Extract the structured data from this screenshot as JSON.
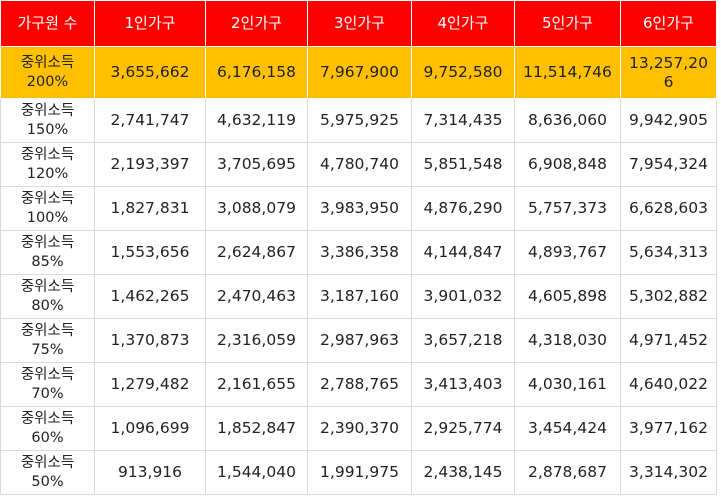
{
  "table": {
    "headers": [
      "가구원 수",
      "1인가구",
      "2인가구",
      "3인가구",
      "4인가구",
      "5인가구",
      "6인가구"
    ],
    "rows": [
      {
        "label": [
          "중위소득",
          "200%"
        ],
        "values": [
          "3,655,662",
          "6,176,158",
          "7,967,900",
          "9,752,580",
          "11,514,746",
          "13,257,206"
        ],
        "highlight": true
      },
      {
        "label": [
          "중위소득",
          "150%"
        ],
        "values": [
          "2,741,747",
          "4,632,119",
          "5,975,925",
          "7,314,435",
          "8,636,060",
          "9,942,905"
        ]
      },
      {
        "label": [
          "중위소득",
          "120%"
        ],
        "values": [
          "2,193,397",
          "3,705,695",
          "4,780,740",
          "5,851,548",
          "6,908,848",
          "7,954,324"
        ]
      },
      {
        "label": [
          "중위소득",
          "100%"
        ],
        "values": [
          "1,827,831",
          "3,088,079",
          "3,983,950",
          "4,876,290",
          "5,757,373",
          "6,628,603"
        ]
      },
      {
        "label": [
          "중위소득",
          "85%"
        ],
        "values": [
          "1,553,656",
          "2,624,867",
          "3,386,358",
          "4,144,847",
          "4,893,767",
          "5,634,313"
        ]
      },
      {
        "label": [
          "중위소득",
          "80%"
        ],
        "values": [
          "1,462,265",
          "2,470,463",
          "3,187,160",
          "3,901,032",
          "4,605,898",
          "5,302,882"
        ]
      },
      {
        "label": [
          "중위소득",
          "75%"
        ],
        "values": [
          "1,370,873",
          "2,316,059",
          "2,987,963",
          "3,657,218",
          "4,318,030",
          "4,971,452"
        ]
      },
      {
        "label": [
          "중위소득",
          "70%"
        ],
        "values": [
          "1,279,482",
          "2,161,655",
          "2,788,765",
          "3,413,403",
          "4,030,161",
          "4,640,022"
        ]
      },
      {
        "label": [
          "중위소득",
          "60%"
        ],
        "values": [
          "1,096,699",
          "1,852,847",
          "2,390,370",
          "2,925,774",
          "3,454,424",
          "3,977,162"
        ]
      },
      {
        "label": [
          "중위소득",
          "50%"
        ],
        "values": [
          "913,916",
          "1,544,040",
          "1,991,975",
          "2,438,145",
          "2,878,687",
          "3,314,302"
        ]
      }
    ]
  },
  "colors": {
    "header_bg": "#ff0000",
    "header_text": "#ffffff",
    "highlight_bg": "#ffc000",
    "grid_line": "#d9d9d9",
    "body_text": "#222222"
  }
}
